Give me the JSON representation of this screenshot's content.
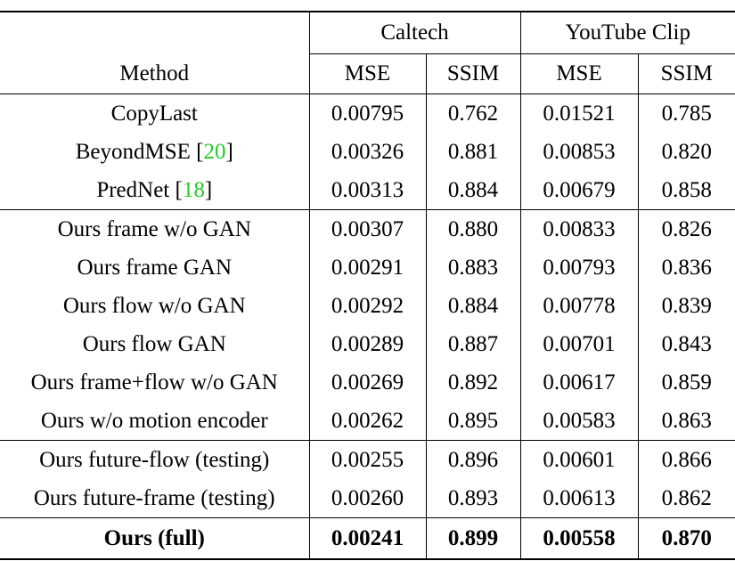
{
  "header": {
    "groups": [
      "Caltech",
      "YouTube Clip"
    ],
    "method_label": "Method",
    "metrics": [
      "MSE",
      "SSIM",
      "MSE",
      "SSIM"
    ]
  },
  "rows": [
    {
      "method": "CopyLast",
      "ref": "",
      "values": [
        "0.00795",
        "0.762",
        "0.01521",
        "0.785"
      ]
    },
    {
      "method": "BeyondMSE ",
      "ref": "20",
      "values": [
        "0.00326",
        "0.881",
        "0.00853",
        "0.820"
      ]
    },
    {
      "method": "PredNet ",
      "ref": "18",
      "values": [
        "0.00313",
        "0.884",
        "0.00679",
        "0.858"
      ]
    },
    {
      "method": "Ours frame w/o GAN",
      "ref": "",
      "values": [
        "0.00307",
        "0.880",
        "0.00833",
        "0.826"
      ]
    },
    {
      "method": "Ours frame GAN",
      "ref": "",
      "values": [
        "0.00291",
        "0.883",
        "0.00793",
        "0.836"
      ]
    },
    {
      "method": "Ours flow w/o GAN",
      "ref": "",
      "values": [
        "0.00292",
        "0.884",
        "0.00778",
        "0.839"
      ]
    },
    {
      "method": "Ours flow GAN",
      "ref": "",
      "values": [
        "0.00289",
        "0.887",
        "0.00701",
        "0.843"
      ]
    },
    {
      "method": "Ours frame+flow w/o GAN",
      "ref": "",
      "values": [
        "0.00269",
        "0.892",
        "0.00617",
        "0.859"
      ]
    },
    {
      "method": "Ours w/o motion encoder",
      "ref": "",
      "values": [
        "0.00262",
        "0.895",
        "0.00583",
        "0.863"
      ]
    },
    {
      "method": "Ours future-flow (testing)",
      "ref": "",
      "values": [
        "0.00255",
        "0.896",
        "0.00601",
        "0.866"
      ]
    },
    {
      "method": "Ours future-frame (testing)",
      "ref": "",
      "values": [
        "0.00260",
        "0.893",
        "0.00613",
        "0.862"
      ]
    },
    {
      "method": "Ours (full)",
      "ref": "",
      "values": [
        "0.00241",
        "0.899",
        "0.00558",
        "0.870"
      ]
    }
  ],
  "colors": {
    "reference_link": "#22cc22",
    "text": "#000000"
  }
}
